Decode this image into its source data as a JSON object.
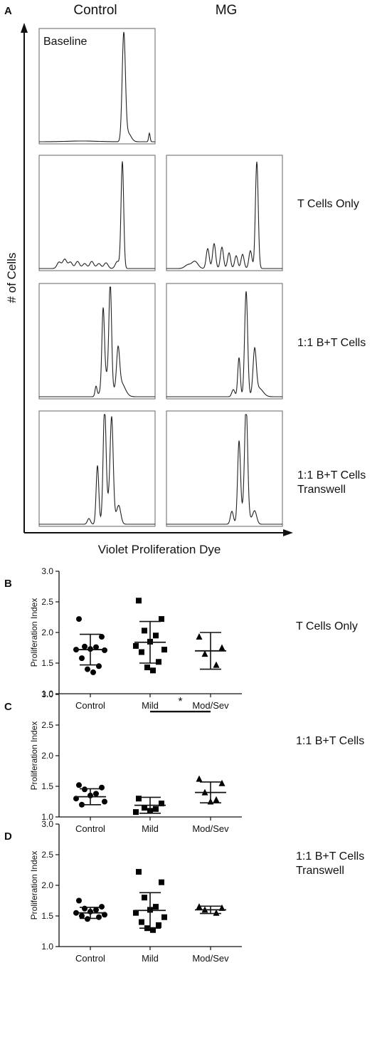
{
  "panel_a": {
    "letter": "A",
    "columns": [
      "Control",
      "MG"
    ],
    "y_axis_label": "# of Cells",
    "x_axis_label": "Violet Proliferation Dye",
    "baseline_label": "Baseline",
    "rows": [
      "T Cells Only",
      "1:1 B+T Cells",
      "1:1 B+T Cells\nTranswell"
    ]
  },
  "chart_data": [
    {
      "type": "scatter",
      "panel": "B",
      "condition": "T Cells Only",
      "ylabel": "Proliferation Index",
      "ylim": [
        1.0,
        3.0
      ],
      "yticks": [
        "1.0",
        "1.5",
        "2.0",
        "2.5",
        "3.0"
      ],
      "categories": [
        "Control",
        "Mild",
        "Mod/Sev"
      ],
      "markers": [
        "circle",
        "square",
        "triangle"
      ],
      "points": [
        [
          2.22,
          1.93,
          1.77,
          1.76,
          1.73,
          1.72,
          1.71,
          1.58,
          1.45,
          1.4,
          1.35
        ],
        [
          2.52,
          2.22,
          2.03,
          1.95,
          1.85,
          1.78,
          1.72,
          1.68,
          1.52,
          1.43,
          1.38
        ],
        [
          1.93,
          1.75,
          1.65,
          1.47
        ]
      ],
      "mean": [
        1.72,
        1.84,
        1.7
      ],
      "sd": [
        0.25,
        0.34,
        0.3
      ]
    },
    {
      "type": "scatter",
      "panel": "C",
      "condition": "1:1 B+T Cells",
      "ylabel": "Proliferation Index",
      "ylim": [
        1.0,
        3.0
      ],
      "yticks": [
        "1.0",
        "1.5",
        "2.0",
        "2.5",
        "3.0"
      ],
      "categories": [
        "Control",
        "Mild",
        "Mod/Sev"
      ],
      "markers": [
        "circle",
        "square",
        "triangle"
      ],
      "points": [
        [
          1.52,
          1.48,
          1.45,
          1.38,
          1.35,
          1.3,
          1.25,
          1.2
        ],
        [
          1.3,
          1.22,
          1.15,
          1.13,
          1.1,
          1.08
        ],
        [
          1.62,
          1.55,
          1.4,
          1.28,
          1.25
        ]
      ],
      "mean": [
        1.33,
        1.19,
        1.4
      ],
      "sd": [
        0.13,
        0.13,
        0.17
      ],
      "significance": {
        "from": "Mild",
        "to": "Mod/Sev",
        "label": "*",
        "y": 2.72
      }
    },
    {
      "type": "scatter",
      "panel": "D",
      "condition": "1:1 B+T Cells\nTranswell",
      "ylabel": "Proliferation Index",
      "ylim": [
        1.0,
        3.0
      ],
      "yticks": [
        "1.0",
        "1.5",
        "2.0",
        "2.5",
        "3.0"
      ],
      "categories": [
        "Control",
        "Mild",
        "Mod/Sev"
      ],
      "markers": [
        "circle",
        "square",
        "triangle"
      ],
      "points": [
        [
          1.75,
          1.65,
          1.62,
          1.6,
          1.57,
          1.55,
          1.52,
          1.5,
          1.48,
          1.45
        ],
        [
          2.22,
          2.05,
          1.8,
          1.65,
          1.6,
          1.55,
          1.48,
          1.4,
          1.35,
          1.3,
          1.27
        ],
        [
          1.65,
          1.63,
          1.6,
          1.55
        ]
      ],
      "mean": [
        1.55,
        1.59,
        1.6
      ],
      "sd": [
        0.09,
        0.29,
        0.06
      ]
    }
  ]
}
